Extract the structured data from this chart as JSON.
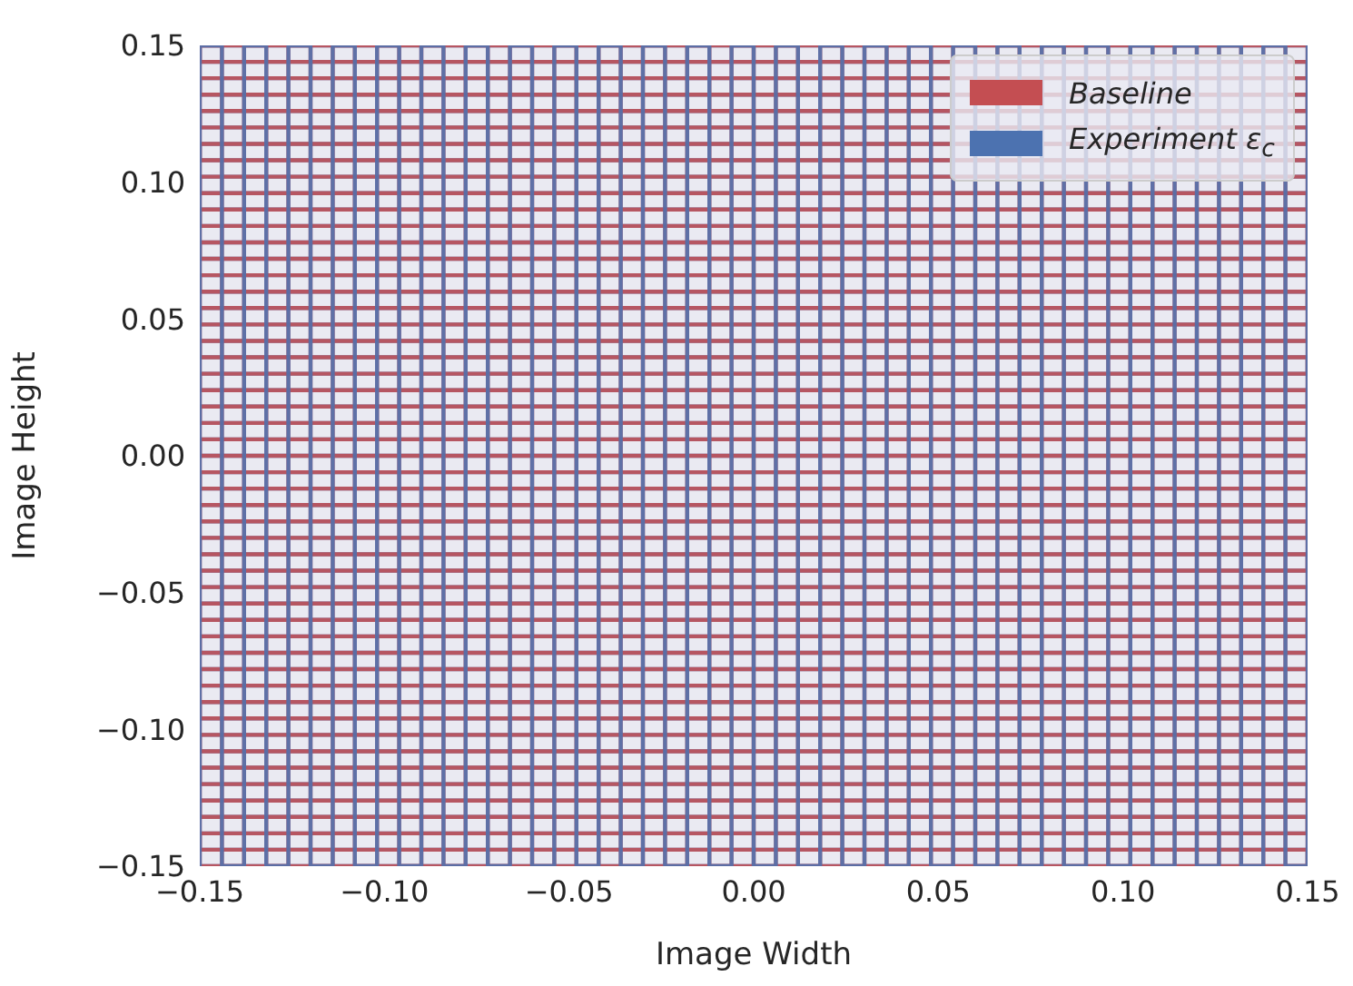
{
  "chart_data": {
    "type": "line",
    "xlabel": "Image Width",
    "ylabel": "Image Height",
    "xlim": [
      -0.15,
      0.15
    ],
    "ylim": [
      -0.15,
      0.15
    ],
    "xticks": [
      {
        "value": -0.15,
        "label": "−0.15"
      },
      {
        "value": -0.1,
        "label": "−0.10"
      },
      {
        "value": -0.05,
        "label": "−0.05"
      },
      {
        "value": 0,
        "label": "0.00"
      },
      {
        "value": 0.05,
        "label": "0.05"
      },
      {
        "value": 0.1,
        "label": "0.10"
      },
      {
        "value": 0.15,
        "label": "0.15"
      }
    ],
    "yticks": [
      {
        "value": -0.15,
        "label": "−0.15"
      },
      {
        "value": -0.1,
        "label": "−0.10"
      },
      {
        "value": -0.05,
        "label": "−0.05"
      },
      {
        "value": 0,
        "label": "0.00"
      },
      {
        "value": 0.05,
        "label": "0.05"
      },
      {
        "value": 0.1,
        "label": "0.10"
      },
      {
        "value": 0.15,
        "label": "0.15"
      }
    ],
    "legend": "top right",
    "marker": "none",
    "line_style": "solid",
    "series": [
      {
        "color": "#c44e52",
        "x": [
          0.15,
          0.15,
          0.144,
          0.144,
          0.138,
          0.138,
          0.132,
          0.132,
          0.126,
          0.126,
          0.12,
          0.12,
          0.114,
          0.114,
          0.108,
          0.108,
          0.102,
          0.102,
          0.096,
          0.096,
          0.09,
          0.09,
          0.084,
          0.084,
          0.078,
          0.078,
          0.072,
          0.072,
          0.066,
          0.066,
          0.06,
          0.06,
          0.054,
          0.054,
          0.048,
          0.048,
          0.042,
          0.042,
          0.036,
          0.036,
          0.03,
          0.03,
          0.024,
          0.024,
          0.018,
          0.018,
          0.012,
          0.012,
          0.006,
          0.006,
          0,
          0,
          -0.006,
          -0.006,
          -0.012,
          -0.012,
          -0.018,
          -0.018,
          -0.024,
          -0.024,
          -0.03,
          -0.03,
          -0.036,
          -0.036,
          -0.042,
          -0.042,
          -0.048,
          -0.048,
          -0.054,
          -0.054,
          -0.06,
          -0.06,
          -0.066,
          -0.066,
          -0.072,
          -0.072,
          -0.078,
          -0.078,
          -0.084,
          -0.084,
          -0.09,
          -0.09,
          -0.096,
          -0.096,
          -0.102,
          -0.102,
          -0.108,
          -0.108,
          -0.114,
          -0.114,
          -0.12,
          -0.12,
          -0.126,
          -0.126,
          -0.132,
          -0.132,
          -0.138,
          -0.138,
          -0.144,
          -0.144,
          -0.15,
          -0.15
        ],
        "values": [
          0.15,
          -0.15,
          -0.15,
          0.15,
          0.15,
          -0.15,
          -0.15,
          0.15,
          0.15,
          -0.15,
          -0.15,
          0.15,
          0.15,
          -0.15,
          -0.15,
          0.15,
          0.15,
          -0.15,
          -0.15,
          0.15,
          0.15,
          -0.15,
          -0.15,
          0.15,
          0.15,
          -0.15,
          -0.15,
          0.15,
          0.15,
          -0.15,
          -0.15,
          0.15,
          0.15,
          -0.15,
          -0.15,
          0.15,
          0.15,
          -0.15,
          -0.15,
          0.15,
          0.15,
          -0.15,
          -0.15,
          0.15,
          0.15,
          -0.15,
          -0.15,
          0.15,
          0.15,
          -0.15,
          -0.15,
          0.15,
          0.15,
          -0.15,
          -0.15,
          0.15,
          0.15,
          -0.15,
          -0.15,
          0.15,
          0.15,
          -0.15,
          -0.15,
          0.15,
          0.15,
          -0.15,
          -0.15,
          0.15,
          0.15,
          -0.15,
          -0.15,
          0.15,
          0.15,
          -0.15,
          -0.15,
          0.15,
          0.15,
          -0.15,
          -0.15,
          0.15,
          0.15,
          -0.15,
          -0.15,
          0.15,
          0.15,
          -0.15,
          -0.15,
          0.15,
          0.15,
          -0.15,
          -0.15,
          0.15,
          0.15,
          -0.15,
          -0.15,
          0.15,
          0.15,
          -0.15,
          -0.15,
          0.15,
          0.15,
          -0.15
        ]
      },
      {
        "color": "#4c72b0",
        "x": [
          -0.15,
          0.15,
          0.15,
          -0.15,
          -0.15,
          0.15,
          0.15,
          -0.15,
          -0.15,
          0.15,
          0.15,
          -0.15,
          -0.15,
          0.15,
          0.15,
          -0.15,
          -0.15,
          0.15,
          0.15,
          -0.15,
          -0.15,
          0.15,
          0.15,
          -0.15,
          -0.15,
          0.15,
          0.15,
          -0.15,
          -0.15,
          0.15,
          0.15,
          -0.15,
          -0.15,
          0.15,
          0.15,
          -0.15,
          -0.15,
          0.15,
          0.15,
          -0.15,
          -0.15,
          0.15,
          0.15,
          -0.15,
          -0.15,
          0.15,
          0.15,
          -0.15,
          -0.15,
          0.15,
          0.15,
          -0.15,
          -0.15,
          0.15,
          0.15,
          -0.15,
          -0.15,
          0.15,
          0.15,
          -0.15,
          -0.15,
          0.15,
          0.15,
          -0.15,
          -0.15,
          0.15,
          0.15,
          -0.15,
          -0.15,
          0.15,
          0.15,
          -0.15,
          -0.15,
          0.15,
          0.15,
          -0.15,
          -0.15,
          0.15,
          0.15,
          -0.15,
          -0.15,
          0.15,
          0.15,
          -0.15,
          -0.15,
          0.15,
          0.15,
          -0.15,
          -0.15,
          0.15,
          0.15,
          -0.15,
          -0.15,
          0.15,
          0.15,
          -0.15,
          -0.15,
          0.15,
          0.15,
          -0.15,
          -0.15,
          0.15
        ],
        "values": [
          -0.15,
          -0.15,
          -0.144,
          -0.144,
          -0.138,
          -0.138,
          -0.132,
          -0.132,
          -0.126,
          -0.126,
          -0.12,
          -0.12,
          -0.114,
          -0.114,
          -0.108,
          -0.108,
          -0.102,
          -0.102,
          -0.096,
          -0.096,
          -0.09,
          -0.09,
          -0.084,
          -0.084,
          -0.078,
          -0.078,
          -0.072,
          -0.072,
          -0.066,
          -0.066,
          -0.06,
          -0.06,
          -0.054,
          -0.054,
          -0.048,
          -0.048,
          -0.042,
          -0.042,
          -0.036,
          -0.036,
          -0.03,
          -0.03,
          -0.024,
          -0.024,
          -0.018,
          -0.018,
          -0.012,
          -0.012,
          -0.006,
          -0.006,
          0,
          0,
          0.006,
          0.006,
          0.012,
          0.012,
          0.018,
          0.018,
          0.024,
          0.024,
          0.03,
          0.03,
          0.036,
          0.036,
          0.042,
          0.042,
          0.048,
          0.048,
          0.054,
          0.054,
          0.06,
          0.06,
          0.066,
          0.066,
          0.072,
          0.072,
          0.078,
          0.078,
          0.084,
          0.084,
          0.09,
          0.09,
          0.096,
          0.096,
          0.102,
          0.102,
          0.108,
          0.108,
          0.114,
          0.114,
          0.12,
          0.12,
          0.126,
          0.126,
          0.132,
          0.132,
          0.138,
          0.138,
          0.144,
          0.144,
          0.15,
          0.15
        ]
      },
      {
        "name": "Baseline",
        "color": "#c44e52",
        "x": [
          -0.15,
          0.15,
          0.15,
          -0.15,
          -0.15,
          0.15,
          0.15,
          -0.15,
          -0.15,
          0.15,
          0.15,
          -0.15,
          -0.15,
          0.15,
          0.15,
          -0.15,
          -0.15,
          0.15,
          0.15,
          -0.15,
          -0.15,
          0.15,
          0.15,
          -0.15,
          -0.15,
          0.15,
          0.15,
          -0.15,
          -0.15,
          0.15,
          0.15,
          -0.15,
          -0.15,
          0.15,
          0.15,
          -0.15,
          -0.15,
          0.15,
          0.15,
          -0.15,
          -0.15,
          0.15,
          0.15,
          -0.15,
          -0.15,
          0.15,
          0.15,
          -0.15,
          -0.15,
          0.15,
          0.15,
          -0.15,
          -0.15,
          0.15,
          0.15,
          -0.15,
          -0.15,
          0.15,
          0.15,
          -0.15,
          -0.15,
          0.15,
          0.15,
          -0.15,
          -0.15,
          0.15,
          0.15,
          -0.15,
          -0.15,
          0.15,
          0.15,
          -0.15,
          -0.15,
          0.15,
          0.15,
          -0.15,
          -0.15,
          0.15,
          0.15,
          -0.15,
          -0.15,
          0.15,
          0.15,
          -0.15,
          -0.15,
          0.15,
          0.15,
          -0.15,
          -0.15,
          0.15,
          0.15,
          -0.15,
          -0.15,
          0.15,
          0.15,
          -0.15,
          -0.15,
          0.15,
          0.15,
          -0.15,
          -0.15,
          0.15
        ],
        "values": [
          -0.15,
          -0.15,
          -0.144,
          -0.144,
          -0.138,
          -0.138,
          -0.132,
          -0.132,
          -0.126,
          -0.126,
          -0.12,
          -0.12,
          -0.114,
          -0.114,
          -0.108,
          -0.108,
          -0.102,
          -0.102,
          -0.096,
          -0.096,
          -0.09,
          -0.09,
          -0.084,
          -0.084,
          -0.078,
          -0.078,
          -0.072,
          -0.072,
          -0.066,
          -0.066,
          -0.06,
          -0.06,
          -0.054,
          -0.054,
          -0.048,
          -0.048,
          -0.042,
          -0.042,
          -0.036,
          -0.036,
          -0.03,
          -0.03,
          -0.024,
          -0.024,
          -0.018,
          -0.018,
          -0.012,
          -0.012,
          -0.006,
          -0.006,
          0,
          0,
          0.006,
          0.006,
          0.012,
          0.012,
          0.018,
          0.018,
          0.024,
          0.024,
          0.03,
          0.03,
          0.036,
          0.036,
          0.042,
          0.042,
          0.048,
          0.048,
          0.054,
          0.054,
          0.06,
          0.06,
          0.066,
          0.066,
          0.072,
          0.072,
          0.078,
          0.078,
          0.084,
          0.084,
          0.09,
          0.09,
          0.096,
          0.096,
          0.102,
          0.102,
          0.108,
          0.108,
          0.114,
          0.114,
          0.12,
          0.12,
          0.126,
          0.126,
          0.132,
          0.132,
          0.138,
          0.138,
          0.144,
          0.144,
          0.15,
          0.15
        ]
      },
      {
        "name": "Experiment ε$_{c}$",
        "color": "#4c72b0",
        "x": [
          0.15,
          0.15,
          0.144,
          0.144,
          0.138,
          0.138,
          0.132,
          0.132,
          0.126,
          0.126,
          0.12,
          0.12,
          0.114,
          0.114,
          0.108,
          0.108,
          0.102,
          0.102,
          0.096,
          0.096,
          0.09,
          0.09,
          0.084,
          0.084,
          0.078,
          0.078,
          0.072,
          0.072,
          0.066,
          0.066,
          0.06,
          0.06,
          0.054,
          0.054,
          0.048,
          0.048,
          0.042,
          0.042,
          0.036,
          0.036,
          0.03,
          0.03,
          0.024,
          0.024,
          0.018,
          0.018,
          0.012,
          0.012,
          0.006,
          0.006,
          0,
          0,
          -0.006,
          -0.006,
          -0.012,
          -0.012,
          -0.018,
          -0.018,
          -0.024,
          -0.024,
          -0.03,
          -0.03,
          -0.036,
          -0.036,
          -0.042,
          -0.042,
          -0.048,
          -0.048,
          -0.054,
          -0.054,
          -0.06,
          -0.06,
          -0.066,
          -0.066,
          -0.072,
          -0.072,
          -0.078,
          -0.078,
          -0.084,
          -0.084,
          -0.09,
          -0.09,
          -0.096,
          -0.096,
          -0.102,
          -0.102,
          -0.108,
          -0.108,
          -0.114,
          -0.114,
          -0.12,
          -0.12,
          -0.126,
          -0.126,
          -0.132,
          -0.132,
          -0.138,
          -0.138,
          -0.144,
          -0.144,
          -0.15,
          -0.15
        ],
        "values": [
          0.15,
          -0.15,
          -0.15,
          0.15,
          0.15,
          -0.15,
          -0.15,
          0.15,
          0.15,
          -0.15,
          -0.15,
          0.15,
          0.15,
          -0.15,
          -0.15,
          0.15,
          0.15,
          -0.15,
          -0.15,
          0.15,
          0.15,
          -0.15,
          -0.15,
          0.15,
          0.15,
          -0.15,
          -0.15,
          0.15,
          0.15,
          -0.15,
          -0.15,
          0.15,
          0.15,
          -0.15,
          -0.15,
          0.15,
          0.15,
          -0.15,
          -0.15,
          0.15,
          0.15,
          -0.15,
          -0.15,
          0.15,
          0.15,
          -0.15,
          -0.15,
          0.15,
          0.15,
          -0.15,
          -0.15,
          0.15,
          0.15,
          -0.15,
          -0.15,
          0.15,
          0.15,
          -0.15,
          -0.15,
          0.15,
          0.15,
          -0.15,
          -0.15,
          0.15,
          0.15,
          -0.15,
          -0.15,
          0.15,
          0.15,
          -0.15,
          -0.15,
          0.15,
          0.15,
          -0.15,
          -0.15,
          0.15,
          0.15,
          -0.15,
          -0.15,
          0.15,
          0.15,
          -0.15,
          -0.15,
          0.15,
          0.15,
          -0.15,
          -0.15,
          0.15,
          0.15,
          -0.15,
          -0.15,
          0.15,
          0.15,
          -0.15,
          -0.15,
          0.15,
          0.15,
          -0.15,
          -0.15,
          0.15,
          0.15,
          -0.15
        ]
      }
    ]
  }
}
